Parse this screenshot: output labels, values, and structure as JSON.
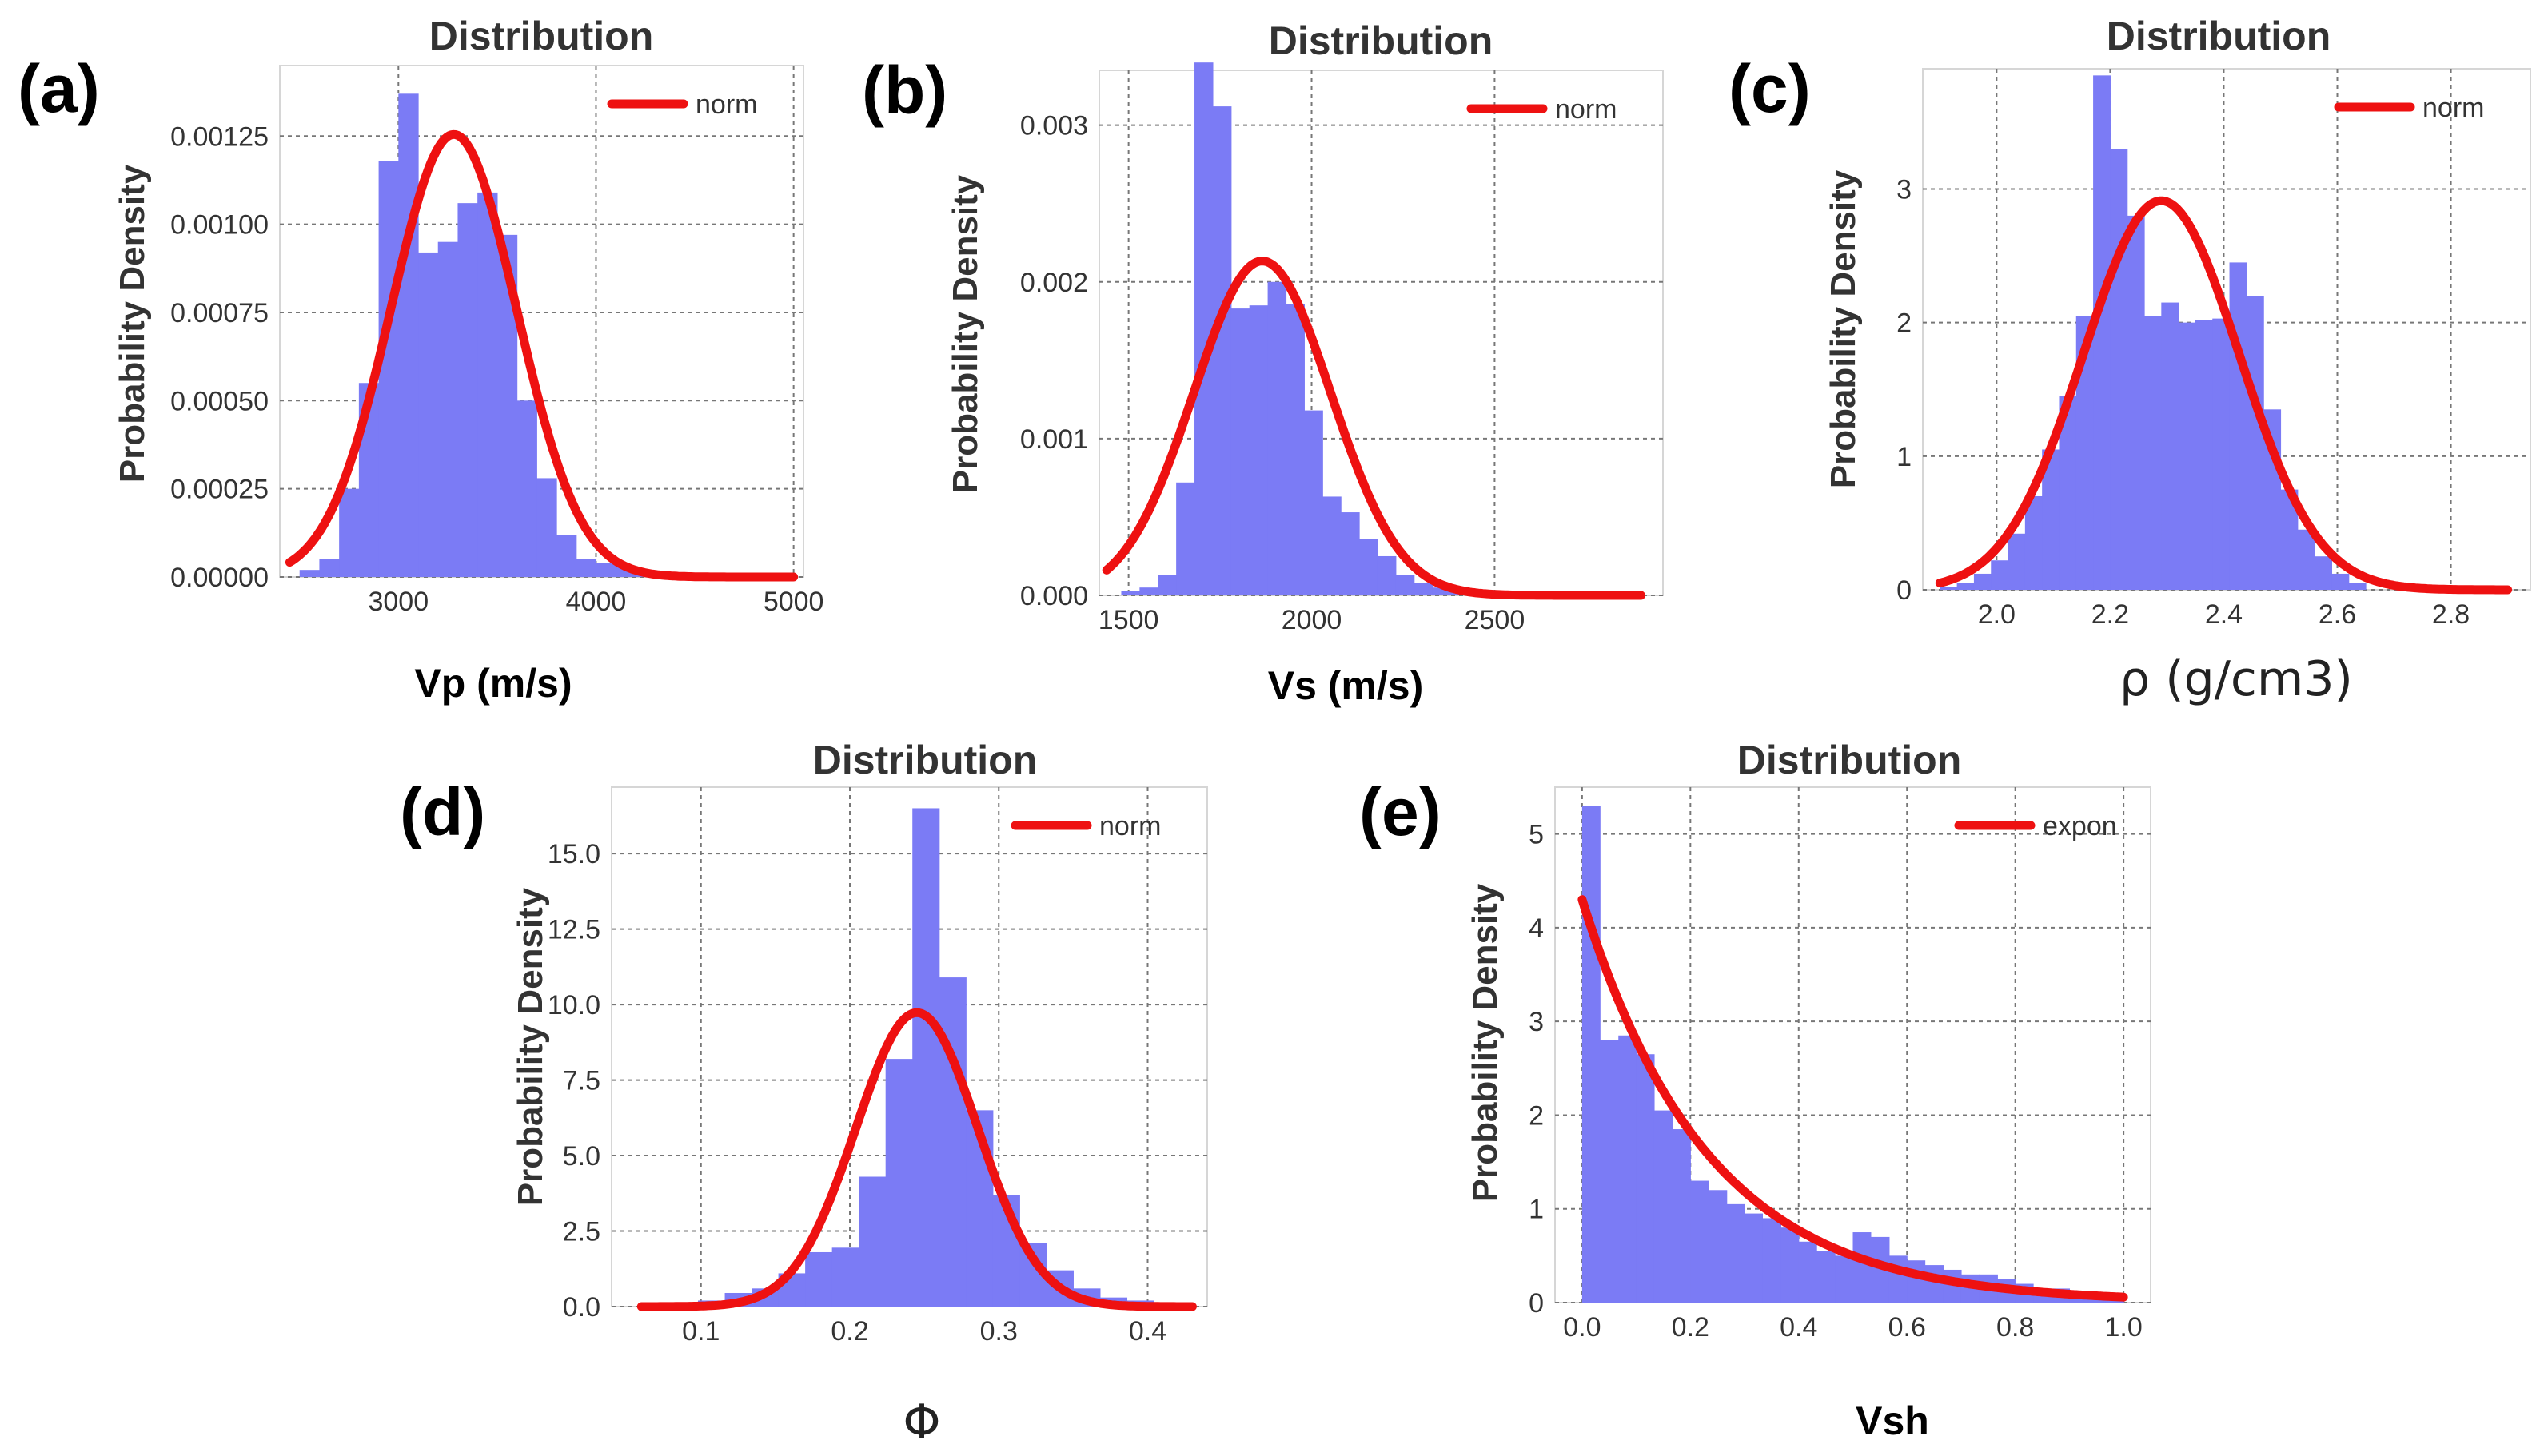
{
  "colors": {
    "histogram": "#7b7bf5",
    "fit_curve": "#ee1111",
    "grid": "#777777"
  },
  "chart_data": [
    {
      "type": "bar",
      "panel_label": "(a)",
      "title": "Distribution",
      "xlabel": "Vp (m/s)",
      "ylabel": "Probability Density",
      "xlim": [
        2400,
        5050
      ],
      "ylim": [
        0,
        0.00145
      ],
      "xticks": [
        3000,
        4000,
        5000
      ],
      "xtick_labels": [
        "3000",
        "4000",
        "5000"
      ],
      "yticks": [
        0,
        0.00025,
        0.0005,
        0.00075,
        0.001,
        0.00125
      ],
      "ytick_labels": [
        "0.00000",
        "0.00025",
        "0.00050",
        "0.00075",
        "0.00100",
        "0.00125"
      ],
      "bin_edges": [
        2500,
        2600,
        2700,
        2800,
        2900,
        3000,
        3100,
        3200,
        3300,
        3400,
        3500,
        3600,
        3700,
        3800,
        3900,
        4000,
        4100,
        4200,
        4300
      ],
      "densities": [
        2e-05,
        5e-05,
        0.00025,
        0.00055,
        0.00118,
        0.00137,
        0.00092,
        0.00095,
        0.00106,
        0.00109,
        0.00097,
        0.0005,
        0.00028,
        0.00012,
        5e-05,
        4e-05,
        3e-05,
        1e-05
      ],
      "fit": {
        "name": "norm",
        "mu": 3280,
        "sigma": 318,
        "x_range": [
          2450,
          5000
        ]
      },
      "legend": "norm",
      "legend_position": "top-right"
    },
    {
      "type": "bar",
      "panel_label": "(b)",
      "title": "Distribution",
      "xlabel": "Vs (m/s)",
      "ylabel": "Probability Density",
      "xlim": [
        1420,
        2960
      ],
      "ylim": [
        0,
        0.00335
      ],
      "xticks": [
        1500,
        2000,
        2500
      ],
      "xtick_labels": [
        "1500",
        "2000",
        "2500"
      ],
      "yticks": [
        0,
        0.001,
        0.002,
        0.003
      ],
      "ytick_labels": [
        "0.000",
        "0.001",
        "0.002",
        "0.003"
      ],
      "bin_edges": [
        1480,
        1530,
        1580,
        1630,
        1680,
        1730,
        1780,
        1830,
        1880,
        1930,
        1980,
        2030,
        2080,
        2130,
        2180,
        2230,
        2280,
        2330,
        2380,
        2430,
        2480
      ],
      "densities": [
        3e-05,
        5e-05,
        0.00013,
        0.00072,
        0.0034,
        0.00312,
        0.00183,
        0.00185,
        0.002,
        0.00186,
        0.00118,
        0.00063,
        0.00053,
        0.00036,
        0.00025,
        0.00013,
        8e-05,
        5e-05,
        3e-05,
        2e-05
      ],
      "fit": {
        "name": "norm",
        "mu": 1865,
        "sigma": 187,
        "x_range": [
          1440,
          2900
        ]
      },
      "legend": "norm",
      "legend_position": "top-right"
    },
    {
      "type": "bar",
      "panel_label": "(c)",
      "title": "Distribution",
      "xlabel": "ρ (g/cm3)",
      "ylabel": "Probability Density",
      "xlim": [
        1.87,
        2.94
      ],
      "ylim": [
        0,
        3.9
      ],
      "xticks": [
        2.0,
        2.2,
        2.4,
        2.6,
        2.8
      ],
      "xtick_labels": [
        "2.0",
        "2.2",
        "2.4",
        "2.6",
        "2.8"
      ],
      "yticks": [
        0,
        1,
        2,
        3
      ],
      "ytick_labels": [
        "0",
        "1",
        "2",
        "3"
      ],
      "bin_edges": [
        1.9,
        1.93,
        1.96,
        1.99,
        2.02,
        2.05,
        2.08,
        2.11,
        2.14,
        2.17,
        2.2,
        2.23,
        2.26,
        2.29,
        2.32,
        2.35,
        2.38,
        2.41,
        2.44,
        2.47,
        2.5,
        2.53,
        2.56,
        2.59,
        2.62,
        2.65
      ],
      "densities": [
        0.02,
        0.05,
        0.12,
        0.22,
        0.42,
        0.7,
        1.05,
        1.45,
        2.05,
        3.85,
        3.3,
        2.8,
        2.05,
        2.15,
        2.0,
        2.02,
        2.03,
        2.45,
        2.2,
        1.35,
        0.75,
        0.45,
        0.25,
        0.12,
        0.05
      ],
      "fit": {
        "name": "norm",
        "mu": 2.29,
        "sigma": 0.137,
        "x_range": [
          1.9,
          2.9
        ]
      },
      "legend": "norm",
      "legend_position": "top-right"
    },
    {
      "type": "bar",
      "panel_label": "(d)",
      "title": "Distribution",
      "xlabel": "Φ",
      "ylabel": "Probability Density",
      "xlim": [
        0.04,
        0.44
      ],
      "ylim": [
        0,
        17.2
      ],
      "xticks": [
        0.1,
        0.2,
        0.3,
        0.4
      ],
      "xtick_labels": [
        "0.1",
        "0.2",
        "0.3",
        "0.4"
      ],
      "yticks": [
        0,
        2.5,
        5,
        7.5,
        10,
        12.5,
        15
      ],
      "ytick_labels": [
        "0.0",
        "2.5",
        "5.0",
        "7.5",
        "10.0",
        "12.5",
        "15.0"
      ],
      "bin_edges": [
        0.062,
        0.08,
        0.098,
        0.116,
        0.134,
        0.152,
        0.17,
        0.188,
        0.206,
        0.224,
        0.242,
        0.26,
        0.278,
        0.296,
        0.314,
        0.332,
        0.35,
        0.368,
        0.386,
        0.404,
        0.422
      ],
      "densities": [
        0.05,
        0.1,
        0.2,
        0.45,
        0.6,
        1.1,
        1.8,
        1.95,
        4.3,
        8.2,
        16.5,
        10.9,
        6.5,
        3.7,
        2.1,
        1.2,
        0.6,
        0.3,
        0.2,
        0.1
      ],
      "fit": {
        "name": "norm",
        "mu": 0.245,
        "sigma": 0.041,
        "x_range": [
          0.06,
          0.43
        ]
      },
      "legend": "norm",
      "legend_position": "top-right"
    },
    {
      "type": "bar",
      "panel_label": "(e)",
      "title": "Distribution",
      "xlabel": "Vsh",
      "ylabel": "Probability Density",
      "xlim": [
        -0.05,
        1.05
      ],
      "ylim": [
        0,
        5.5
      ],
      "xticks": [
        0,
        0.2,
        0.4,
        0.6,
        0.8,
        1.0
      ],
      "xtick_labels": [
        "0.0",
        "0.2",
        "0.4",
        "0.6",
        "0.8",
        "1.0"
      ],
      "yticks": [
        0,
        1,
        2,
        3,
        4,
        5
      ],
      "ytick_labels": [
        "0",
        "1",
        "2",
        "3",
        "4",
        "5"
      ],
      "bin_edges": [
        0.0,
        0.033,
        0.067,
        0.1,
        0.133,
        0.167,
        0.2,
        0.233,
        0.267,
        0.3,
        0.333,
        0.367,
        0.4,
        0.433,
        0.467,
        0.5,
        0.533,
        0.567,
        0.6,
        0.633,
        0.667,
        0.7,
        0.733,
        0.767,
        0.8,
        0.833,
        0.867,
        0.9,
        0.933,
        0.967,
        1.0
      ],
      "densities": [
        5.3,
        2.8,
        2.85,
        2.65,
        2.05,
        1.85,
        1.3,
        1.2,
        1.05,
        0.95,
        0.9,
        0.8,
        0.65,
        0.55,
        0.5,
        0.75,
        0.7,
        0.5,
        0.45,
        0.4,
        0.35,
        0.3,
        0.3,
        0.25,
        0.2,
        0.15,
        0.15,
        0.1,
        0.1,
        0.05
      ],
      "fit": {
        "name": "expon",
        "rate": 4.3,
        "x_range": [
          0,
          1.0
        ]
      },
      "legend": "expon",
      "legend_position": "top-right"
    }
  ]
}
